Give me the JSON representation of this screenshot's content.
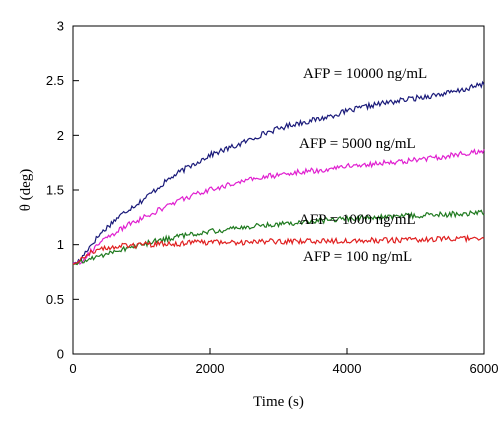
{
  "chart_data": {
    "type": "line",
    "xlabel": "Time (s)",
    "ylabel": "θ (deg)",
    "xlim": [
      0,
      6000
    ],
    "ylim": [
      0,
      3
    ],
    "xticks": [
      0,
      2000,
      4000,
      6000
    ],
    "yticks": [
      0,
      0.5,
      1,
      1.5,
      2,
      2.5,
      3
    ],
    "grid": false,
    "legend": "inline labels near curves",
    "series": [
      {
        "name": "AFP = 10000 ng/mL",
        "color": "#1a1a7a",
        "x": [
          0,
          100,
          200,
          400,
          600,
          800,
          1000,
          1200,
          1400,
          1600,
          1800,
          2000,
          2400,
          2800,
          3200,
          3600,
          4000,
          4400,
          4800,
          5200,
          5600,
          6000
        ],
        "y": [
          0.83,
          0.85,
          0.95,
          1.1,
          1.22,
          1.32,
          1.4,
          1.5,
          1.6,
          1.68,
          1.75,
          1.82,
          1.91,
          2.02,
          2.1,
          2.15,
          2.22,
          2.28,
          2.32,
          2.36,
          2.4,
          2.47
        ]
      },
      {
        "name": "AFP = 5000 ng/mL",
        "color": "#e020d0",
        "x": [
          0,
          100,
          200,
          400,
          600,
          800,
          1000,
          1200,
          1400,
          1600,
          1800,
          2000,
          2400,
          2800,
          3200,
          3600,
          4000,
          4400,
          4800,
          5200,
          5600,
          6000
        ],
        "y": [
          0.83,
          0.84,
          0.9,
          1.02,
          1.1,
          1.18,
          1.24,
          1.3,
          1.36,
          1.42,
          1.46,
          1.5,
          1.57,
          1.62,
          1.66,
          1.68,
          1.72,
          1.74,
          1.76,
          1.79,
          1.82,
          1.86
        ]
      },
      {
        "name": "AFP = 1000 ng/mL",
        "color": "#1f7a1f",
        "x": [
          0,
          100,
          200,
          400,
          600,
          800,
          1000,
          1200,
          1400,
          1600,
          1800,
          2000,
          2400,
          2800,
          3200,
          3600,
          4000,
          4400,
          4800,
          5200,
          5600,
          6000
        ],
        "y": [
          0.82,
          0.83,
          0.86,
          0.9,
          0.94,
          0.97,
          1.0,
          1.03,
          1.06,
          1.08,
          1.1,
          1.12,
          1.15,
          1.18,
          1.2,
          1.22,
          1.24,
          1.25,
          1.26,
          1.27,
          1.28,
          1.29
        ]
      },
      {
        "name": "AFP = 100 ng/mL",
        "color": "#e02020",
        "x": [
          0,
          100,
          200,
          400,
          600,
          800,
          1000,
          1200,
          1400,
          1600,
          1800,
          2000,
          2400,
          2800,
          3200,
          3600,
          4000,
          4400,
          4800,
          5200,
          5600,
          6000
        ],
        "y": [
          0.82,
          0.85,
          0.92,
          0.96,
          0.98,
          0.99,
          1.0,
          1.0,
          1.01,
          1.01,
          1.02,
          1.02,
          1.02,
          1.03,
          1.03,
          1.03,
          1.04,
          1.04,
          1.04,
          1.05,
          1.05,
          1.06
        ]
      }
    ]
  }
}
